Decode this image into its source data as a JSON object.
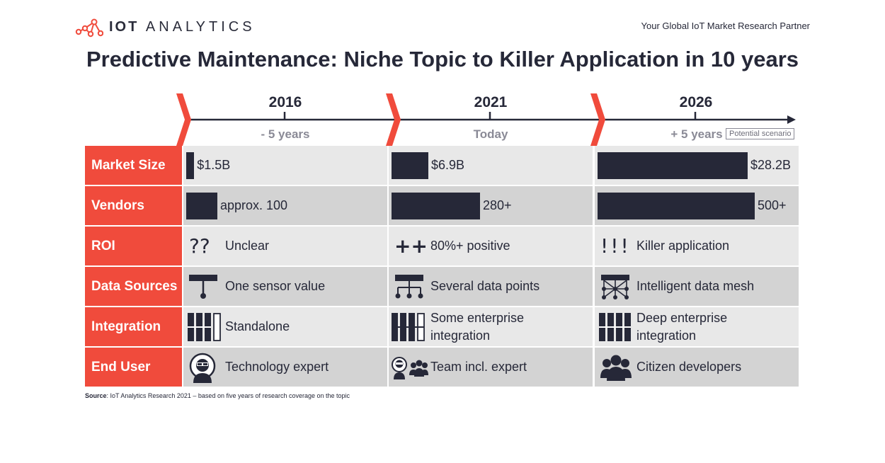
{
  "header": {
    "logo_bold": "IOT",
    "logo_light": "ANALYTICS",
    "tagline": "Your Global IoT Market Research Partner",
    "title": "Predictive Maintenance: Niche Topic to Killer Application in 10 years"
  },
  "colors": {
    "accent": "#f04b3c",
    "dark": "#262838",
    "cell_light": "#e8e8e8",
    "cell_dark": "#d3d3d3",
    "muted": "#8a8a96"
  },
  "timeline": {
    "periods": [
      {
        "year": "2016",
        "sub": "- 5 years"
      },
      {
        "year": "2021",
        "sub": "Today"
      },
      {
        "year": "2026",
        "sub": "+ 5 years",
        "badge": "Potential scenario"
      }
    ]
  },
  "rows": [
    {
      "label": "Market Size",
      "cells": [
        {
          "text": "$1.5B",
          "value": 1.5
        },
        {
          "text": "$6.9B",
          "value": 6.9
        },
        {
          "text": "$28.2B",
          "value": 28.2
        }
      ]
    },
    {
      "label": "Vendors",
      "cells": [
        {
          "text": "approx. 100",
          "value": 100
        },
        {
          "text": "280+",
          "value": 280
        },
        {
          "text": "500+",
          "value": 500
        }
      ]
    },
    {
      "label": "ROI",
      "cells": [
        {
          "text": "Unclear",
          "icon": "question-marks-icon",
          "glyph": "??"
        },
        {
          "text": "80%+ positive",
          "icon": "plus-plus-icon",
          "glyph": "++"
        },
        {
          "text": "Killer application",
          "icon": "exclamation-marks-icon",
          "glyph": "!!!"
        }
      ]
    },
    {
      "label": "Data Sources",
      "cells": [
        {
          "text": "One sensor value",
          "icon": "single-sensor-icon"
        },
        {
          "text": "Several data points",
          "icon": "multi-sensor-icon"
        },
        {
          "text": "Intelligent data mesh",
          "icon": "data-mesh-icon"
        }
      ]
    },
    {
      "label": "Integration",
      "cells": [
        {
          "text": "Standalone",
          "icon": "integration-1-icon"
        },
        {
          "text1": "Some enterprise",
          "text2": "integration",
          "icon": "integration-3-icon"
        },
        {
          "text1": "Deep enterprise",
          "text2": "integration",
          "icon": "integration-4-icon"
        }
      ]
    },
    {
      "label": "End User",
      "cells": [
        {
          "text": "Technology expert",
          "icon": "expert-icon"
        },
        {
          "text": "Team incl. expert",
          "icon": "team-expert-icon"
        },
        {
          "text": "Citizen developers",
          "icon": "citizen-group-icon"
        }
      ]
    }
  ],
  "footnote": {
    "source_label": "Source",
    "source_text": ": IoT Analytics Research 2021 – based on five years of research coverage on the topic"
  }
}
